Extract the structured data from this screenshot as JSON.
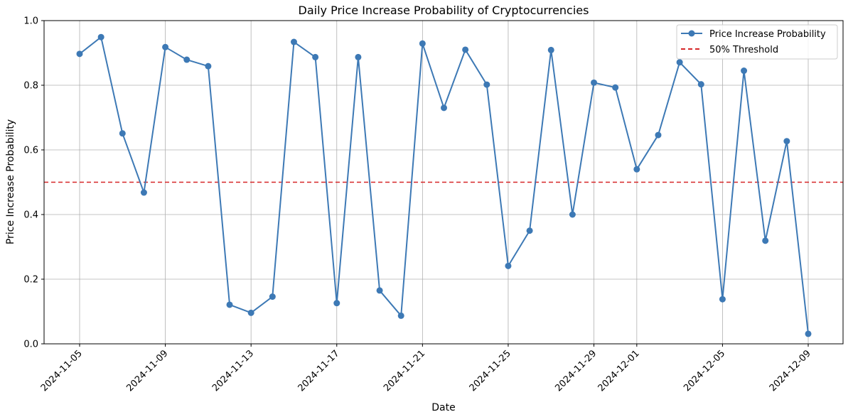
{
  "chart_data": {
    "type": "line",
    "title": "Daily Price Increase Probability of Cryptocurrencies",
    "xlabel": "Date",
    "ylabel": "Price Increase Probability",
    "ylim": [
      0,
      1
    ],
    "xlim": [
      "2024-11-05",
      "2024-12-09"
    ],
    "grid": true,
    "legend_position": "top-right",
    "x_ticks": [
      "2024-11-05",
      "2024-11-09",
      "2024-11-13",
      "2024-11-17",
      "2024-11-21",
      "2024-11-25",
      "2024-11-29",
      "2024-12-01",
      "2024-12-05",
      "2024-12-09"
    ],
    "y_ticks": [
      "0.0",
      "0.2",
      "0.4",
      "0.6",
      "0.8",
      "1.0"
    ],
    "series": [
      {
        "name": "Price Increase Probability",
        "color": "#3d79b5",
        "marker": "circle",
        "x": [
          "2024-11-05",
          "2024-11-06",
          "2024-11-07",
          "2024-11-08",
          "2024-11-09",
          "2024-11-10",
          "2024-11-11",
          "2024-11-12",
          "2024-11-13",
          "2024-11-14",
          "2024-11-15",
          "2024-11-16",
          "2024-11-17",
          "2024-11-18",
          "2024-11-19",
          "2024-11-20",
          "2024-11-21",
          "2024-11-22",
          "2024-11-23",
          "2024-11-24",
          "2024-11-25",
          "2024-11-26",
          "2024-11-27",
          "2024-11-28",
          "2024-11-29",
          "2024-11-30",
          "2024-12-01",
          "2024-12-02",
          "2024-12-03",
          "2024-12-04",
          "2024-12-05",
          "2024-12-06",
          "2024-12-07",
          "2024-12-08",
          "2024-12-09"
        ],
        "values": [
          0.897,
          0.949,
          0.651,
          0.468,
          0.918,
          0.879,
          0.859,
          0.121,
          0.096,
          0.146,
          0.934,
          0.887,
          0.126,
          0.887,
          0.165,
          0.087,
          0.929,
          0.73,
          0.91,
          0.802,
          0.241,
          0.35,
          0.909,
          0.4,
          0.808,
          0.793,
          0.54,
          0.646,
          0.871,
          0.803,
          0.138,
          0.845,
          0.319,
          0.627,
          0.031
        ]
      }
    ],
    "threshold": {
      "name": "50% Threshold",
      "value": 0.5,
      "color": "#d62728",
      "style": "dashed"
    }
  }
}
